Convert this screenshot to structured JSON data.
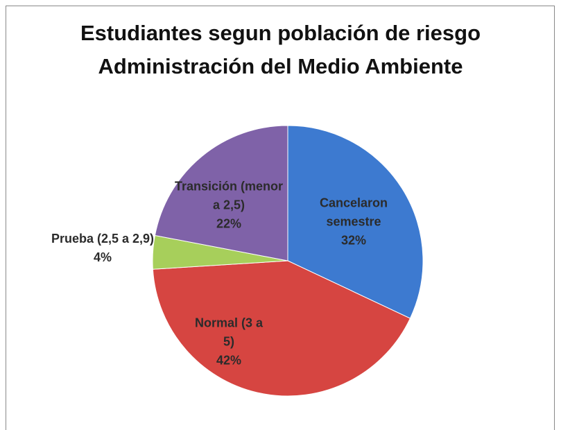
{
  "chart_data": {
    "type": "pie",
    "title": [
      "Estudiantes segun población de riesgo",
      "Administración del Medio Ambiente"
    ],
    "categories": [
      "Cancelaron semestre",
      "Normal (3 a 5)",
      "Prueba (2,5 a 2,9)",
      "Transición (menor a 2,5)"
    ],
    "values": [
      32,
      42,
      4,
      22
    ],
    "value_labels": [
      "32%",
      "42%",
      "4%",
      "22%"
    ],
    "colors": [
      "#3d7ad0",
      "#d64541",
      "#a7cf5b",
      "#7f62a8"
    ]
  }
}
